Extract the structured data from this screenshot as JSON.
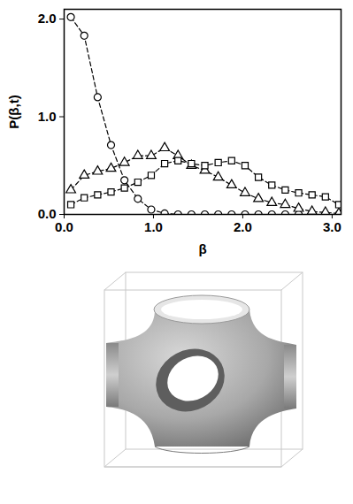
{
  "chart_data": {
    "type": "line",
    "x_label": "β",
    "y_label": "P(β,t)",
    "x": [
      0.075,
      0.225,
      0.375,
      0.525,
      0.675,
      0.825,
      0.975,
      1.125,
      1.275,
      1.425,
      1.575,
      1.725,
      1.875,
      2.025,
      2.175,
      2.325,
      2.475,
      2.625,
      2.775,
      2.925,
      3.075
    ],
    "series": [
      {
        "marker": "circle",
        "line_style": "dashed",
        "color": "#000000",
        "values": [
          2.02,
          1.83,
          1.2,
          0.71,
          0.35,
          0.16,
          0.05,
          0.01,
          0,
          0,
          0,
          0,
          0,
          0,
          0,
          0,
          0,
          0,
          0,
          0,
          0
        ]
      },
      {
        "marker": "triangle",
        "line_style": "dashed",
        "color": "#000000",
        "values": [
          0.25,
          0.4,
          0.44,
          0.47,
          0.53,
          0.6,
          0.6,
          0.68,
          0.6,
          0.5,
          0.45,
          0.38,
          0.3,
          0.22,
          0.16,
          0.12,
          0.1,
          0.06,
          0.03,
          0.02,
          0.01
        ]
      },
      {
        "marker": "square",
        "line_style": "dashed",
        "color": "#000000",
        "values": [
          0.1,
          0.17,
          0.2,
          0.23,
          0.27,
          0.33,
          0.4,
          0.52,
          0.55,
          0.52,
          0.5,
          0.53,
          0.55,
          0.5,
          0.38,
          0.3,
          0.25,
          0.22,
          0.2,
          0.18,
          0.1
        ]
      }
    ],
    "xlim": [
      0,
      3.1
    ],
    "ylim": [
      0,
      2.1
    ],
    "xticks": [
      {
        "value": 0,
        "label": "0.0"
      },
      {
        "value": 1,
        "label": "1.0"
      },
      {
        "value": 2,
        "label": "2.0"
      },
      {
        "value": 3,
        "label": "3.0"
      }
    ],
    "yticks": [
      {
        "value": 0,
        "label": "0.0"
      },
      {
        "value": 1,
        "label": "1.0"
      },
      {
        "value": 2,
        "label": "2.0"
      }
    ],
    "grid": false
  }
}
